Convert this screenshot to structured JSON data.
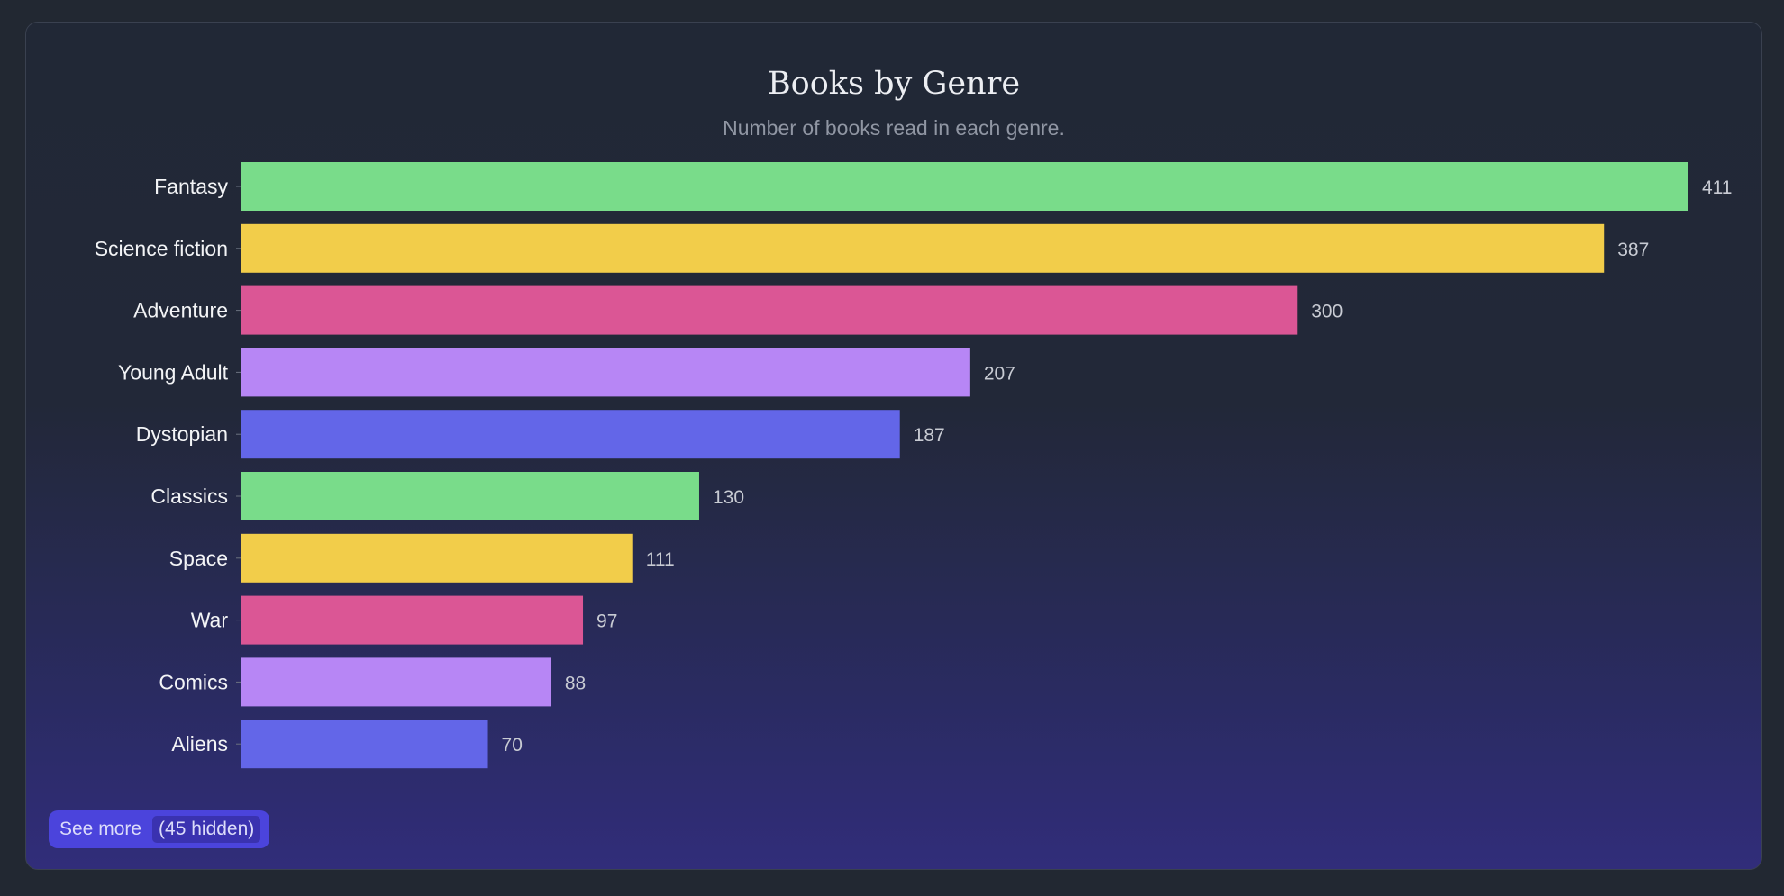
{
  "chart_data": {
    "type": "bar",
    "orientation": "horizontal",
    "title": "Books by Genre",
    "subtitle": "Number of books read in each genre.",
    "categories": [
      "Fantasy",
      "Science fiction",
      "Adventure",
      "Young Adult",
      "Dystopian",
      "Classics",
      "Space",
      "War",
      "Comics",
      "Aliens"
    ],
    "values": [
      411,
      387,
      300,
      207,
      187,
      130,
      111,
      97,
      88,
      70
    ],
    "colors": [
      "#79dc8a",
      "#f2cd4a",
      "#db5695",
      "#b786f5",
      "#6366e8",
      "#79dc8a",
      "#f2cd4a",
      "#db5695",
      "#b786f5",
      "#6366e8"
    ],
    "xlim": [
      0,
      411
    ],
    "grid": false,
    "data_labels": true
  },
  "see_more": {
    "label": "See more",
    "hidden_count": "(45 hidden)"
  }
}
